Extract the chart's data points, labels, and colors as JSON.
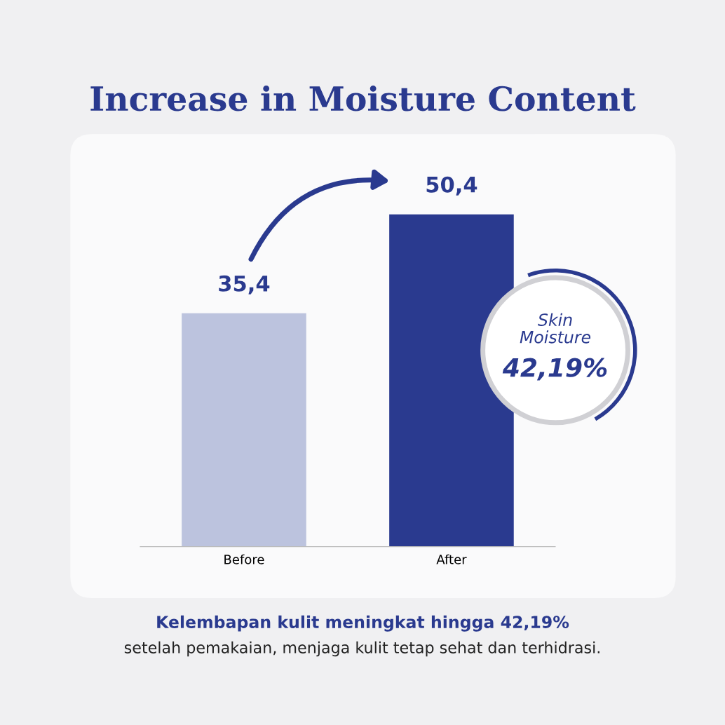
{
  "chart_data": {
    "type": "bar",
    "title": "Increase in Moisture Content",
    "categories": [
      "Before",
      "After"
    ],
    "values": [
      35.4,
      50.4
    ],
    "colors": [
      "#bcc3de",
      "#2a3a8f"
    ],
    "value_labels": [
      "35,4",
      "50,4"
    ],
    "annotations": [
      "Skin\nMoisture",
      "42,19%",
      "Kelembapan kulit meningkat hingga 42,19%",
      "setelah pemakaian, menjaga kulit tetap sehat dan terhidrasi."
    ]
  }
}
